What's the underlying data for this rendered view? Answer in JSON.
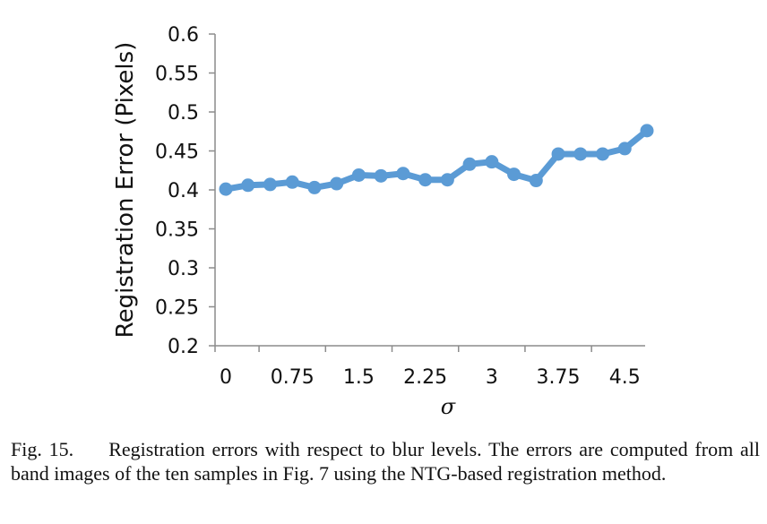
{
  "chart_data": {
    "type": "line",
    "xlabel": "σ",
    "ylabel": "Registration Error (Pixels)",
    "ylim": [
      0.2,
      0.6
    ],
    "yticks": [
      "0.6",
      "0.55",
      "0.5",
      "0.45",
      "0.4",
      "0.35",
      "0.3",
      "0.25",
      "0.2"
    ],
    "xticks": [
      "0",
      "0.75",
      "1.5",
      "2.25",
      "3",
      "3.75",
      "4.5"
    ],
    "xlim": [
      0,
      4.75
    ],
    "grid": false,
    "series": [
      {
        "color": "#5b9bd5",
        "x": [
          0,
          0.25,
          0.5,
          0.75,
          1,
          1.25,
          1.5,
          1.75,
          2,
          2.25,
          2.5,
          2.75,
          3,
          3.25,
          3.5,
          3.75,
          4,
          4.25,
          4.5,
          4.75
        ],
        "y": [
          0.401,
          0.406,
          0.407,
          0.41,
          0.403,
          0.408,
          0.419,
          0.418,
          0.421,
          0.413,
          0.413,
          0.433,
          0.436,
          0.42,
          0.412,
          0.446,
          0.446,
          0.446,
          0.453,
          0.476
        ]
      }
    ]
  },
  "caption": {
    "label": "Fig. 15.",
    "text": "Registration errors with respect to blur levels. The errors are computed from all band images of the ten samples in Fig. 7 using the NTG-based registration method."
  }
}
